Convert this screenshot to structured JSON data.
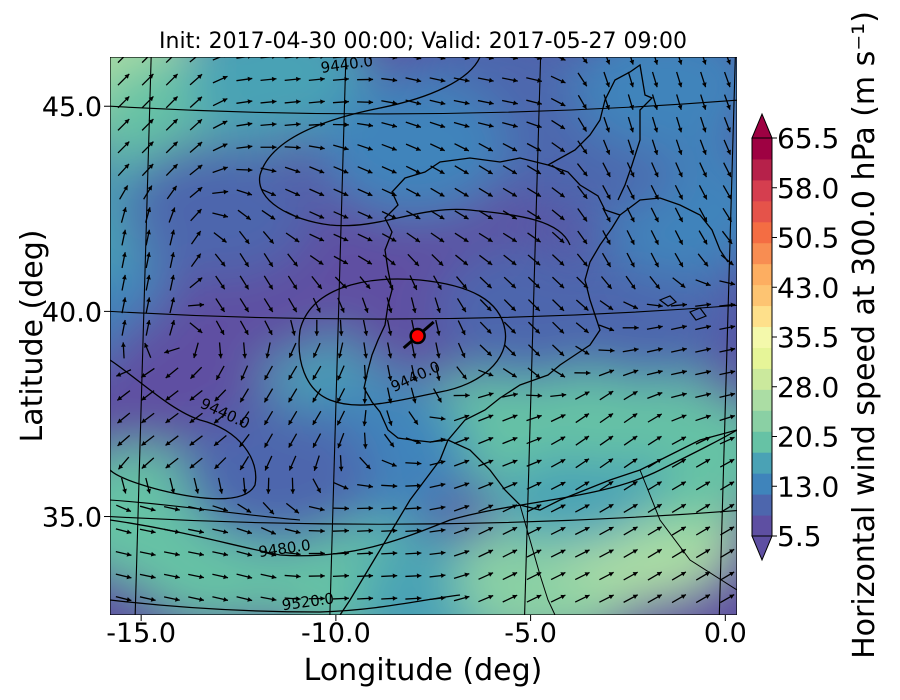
{
  "chart_data": {
    "type": "heatmap",
    "title": "Init: 2017-04-30 00:00; Valid: 2017-05-27 09:00",
    "xlabel": "Longitude (deg)",
    "ylabel": "Latitude (deg)",
    "xlim": [
      -15.8,
      0.3
    ],
    "ylim": [
      32.6,
      46.2
    ],
    "x_ticks": [
      {
        "value": -15,
        "label": "-15.0"
      },
      {
        "value": -10,
        "label": "-10.0"
      },
      {
        "value": -5,
        "label": "-5.0"
      },
      {
        "value": 0,
        "label": "0.0"
      }
    ],
    "y_ticks": [
      {
        "value": 35,
        "label": "35.0"
      },
      {
        "value": 40,
        "label": "40.0"
      },
      {
        "value": 45,
        "label": "45.0"
      }
    ],
    "colorbar": {
      "label": "Horizontal wind speed at 300.0 hPa (m s⁻¹)",
      "min": 5.5,
      "max": 65.5,
      "extend": "both",
      "tick_values": [
        5.5,
        13.0,
        20.5,
        28.0,
        35.5,
        43.0,
        50.5,
        58.0,
        65.5
      ],
      "tick_labels": [
        "5.5",
        "13.0",
        "20.5",
        "28.0",
        "35.5",
        "43.0",
        "50.5",
        "58.0",
        "65.5"
      ],
      "colors": [
        "#5e4fa2",
        "#4d66ad",
        "#3f84bb",
        "#4aa2b5",
        "#66c2a5",
        "#8ad0a4",
        "#abdda4",
        "#cbe99d",
        "#e6f598",
        "#f4f9ab",
        "#fee08b",
        "#fdc472",
        "#fdae61",
        "#f88d52",
        "#f46d43",
        "#e5534a",
        "#d53e4f",
        "#b6214a",
        "#9e0142"
      ]
    },
    "contours": [
      {
        "label": "9440.0",
        "label_lon": -12.9,
        "label_lat": 37.4
      },
      {
        "label": "9440.0",
        "label_lon": -9.7,
        "label_lat": 45.9
      },
      {
        "label": "9440.0",
        "label_lon": -7.9,
        "label_lat": 38.3
      },
      {
        "label": "9480.0",
        "label_lon": -11.3,
        "label_lat": 34.1
      },
      {
        "label": "9520.0",
        "label_lon": -10.7,
        "label_lat": 32.8
      }
    ],
    "marker": {
      "lon": -7.9,
      "lat": 39.4,
      "color": "#ff0000"
    },
    "speed_field": [
      {
        "lon": -15.5,
        "lat": 45.8,
        "speed": 27
      },
      {
        "lon": -14.0,
        "lat": 44.5,
        "speed": 21
      },
      {
        "lon": -15.2,
        "lat": 42.0,
        "speed": 18
      },
      {
        "lon": -14.6,
        "lat": 39.5,
        "speed": 14
      },
      {
        "lon": -14.5,
        "lat": 37.5,
        "speed": 8
      },
      {
        "lon": -13.5,
        "lat": 38.5,
        "speed": 7
      },
      {
        "lon": -15.0,
        "lat": 35.0,
        "speed": 19
      },
      {
        "lon": -13.0,
        "lat": 34.0,
        "speed": 21
      },
      {
        "lon": -9.5,
        "lat": 33.5,
        "speed": 19
      },
      {
        "lon": -7.0,
        "lat": 33.0,
        "speed": 17
      },
      {
        "lon": -4.5,
        "lat": 33.5,
        "speed": 22
      },
      {
        "lon": -2.0,
        "lat": 34.5,
        "speed": 25
      },
      {
        "lon": -1.0,
        "lat": 36.5,
        "speed": 21
      },
      {
        "lon": -4.0,
        "lat": 36.0,
        "speed": 16
      },
      {
        "lon": -6.5,
        "lat": 37.5,
        "speed": 20
      },
      {
        "lon": -3.0,
        "lat": 38.0,
        "speed": 19
      },
      {
        "lon": -9.5,
        "lat": 38.8,
        "speed": 15
      },
      {
        "lon": -12.0,
        "lat": 40.5,
        "speed": 5
      },
      {
        "lon": -10.5,
        "lat": 42.0,
        "speed": 5
      },
      {
        "lon": -7.0,
        "lat": 42.5,
        "speed": 5
      },
      {
        "lon": -7.5,
        "lat": 40.0,
        "speed": 7
      },
      {
        "lon": -5.0,
        "lat": 40.0,
        "speed": 9
      },
      {
        "lon": -2.0,
        "lat": 40.0,
        "speed": 10
      },
      {
        "lon": -1.0,
        "lat": 42.5,
        "speed": 13
      },
      {
        "lon": -3.5,
        "lat": 44.0,
        "speed": 9
      },
      {
        "lon": -6.0,
        "lat": 45.5,
        "speed": 11
      },
      {
        "lon": -11.5,
        "lat": 45.8,
        "speed": 18
      },
      {
        "lon": -1.5,
        "lat": 45.5,
        "speed": 12
      },
      {
        "lon": -9.0,
        "lat": 36.5,
        "speed": 13
      },
      {
        "lon": -11.5,
        "lat": 36.0,
        "speed": 10
      },
      {
        "lon": -13.0,
        "lat": 42.5,
        "speed": 10
      },
      {
        "lon": -8.0,
        "lat": 44.0,
        "speed": 14
      }
    ],
    "wind_field": [
      {
        "lon": -15.0,
        "lat": 45.0,
        "u": 1.0,
        "v": 1.0
      },
      {
        "lon": -11.0,
        "lat": 45.5,
        "u": 1.0,
        "v": 0.1
      },
      {
        "lon": -6.0,
        "lat": 45.5,
        "u": 1.0,
        "v": -0.2
      },
      {
        "lon": -2.0,
        "lat": 45.0,
        "u": 0.3,
        "v": -1.0
      },
      {
        "lon": -15.0,
        "lat": 41.0,
        "u": 0.2,
        "v": 1.0
      },
      {
        "lon": -12.0,
        "lat": 40.5,
        "u": 0.5,
        "v": -0.8
      },
      {
        "lon": -10.0,
        "lat": 42.5,
        "u": 0.9,
        "v": -0.4
      },
      {
        "lon": -6.0,
        "lat": 43.0,
        "u": 1.0,
        "v": -0.6
      },
      {
        "lon": -2.0,
        "lat": 42.0,
        "u": 0.5,
        "v": -1.0
      },
      {
        "lon": -14.0,
        "lat": 37.0,
        "u": -0.8,
        "v": -0.6
      },
      {
        "lon": -11.0,
        "lat": 38.0,
        "u": -0.6,
        "v": -1.0
      },
      {
        "lon": -8.0,
        "lat": 39.0,
        "u": 0.2,
        "v": -1.0
      },
      {
        "lon": -5.0,
        "lat": 39.5,
        "u": 0.8,
        "v": -0.8
      },
      {
        "lon": -1.0,
        "lat": 39.0,
        "u": 0.9,
        "v": 0.2
      },
      {
        "lon": -14.0,
        "lat": 34.5,
        "u": 1.0,
        "v": -0.2
      },
      {
        "lon": -9.0,
        "lat": 34.0,
        "u": 1.0,
        "v": 0.05
      },
      {
        "lon": -5.0,
        "lat": 34.5,
        "u": 1.0,
        "v": 0.5
      },
      {
        "lon": -1.0,
        "lat": 35.0,
        "u": 1.0,
        "v": 0.6
      },
      {
        "lon": -6.0,
        "lat": 37.0,
        "u": 1.0,
        "v": 0.4
      },
      {
        "lon": -3.0,
        "lat": 37.0,
        "u": 1.0,
        "v": 0.7
      }
    ]
  }
}
